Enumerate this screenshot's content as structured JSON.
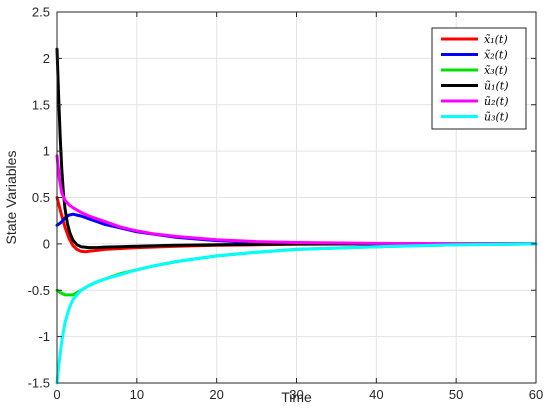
{
  "chart_data": {
    "type": "line",
    "title": "",
    "xlabel": "Time",
    "ylabel": "State Variables",
    "xlim": [
      0,
      60
    ],
    "ylim": [
      -1.5,
      2.5
    ],
    "grid": true,
    "legend_position": "top-right",
    "x_ticks": [
      0,
      10,
      20,
      30,
      40,
      50,
      60
    ],
    "x_tick_labels": [
      "0",
      "10",
      "20",
      "30",
      "40",
      "50",
      "60"
    ],
    "y_ticks": [
      -1.5,
      -1,
      -0.5,
      0,
      0.5,
      1,
      1.5,
      2,
      2.5
    ],
    "y_tick_labels": [
      "-1.5",
      "-1",
      "-0.5",
      "0",
      "0.5",
      "1",
      "1.5",
      "2",
      "2.5"
    ],
    "series": [
      {
        "name": "x̃₁(t)",
        "color": "#ff0000",
        "x": [
          0,
          0.3,
          0.6,
          1,
          1.5,
          2,
          2.5,
          3,
          3.5,
          4,
          5,
          6,
          8,
          10,
          15,
          20,
          25,
          30,
          40,
          50,
          60
        ],
        "y": [
          0.5,
          0.4,
          0.3,
          0.18,
          0.06,
          -0.02,
          -0.06,
          -0.08,
          -0.085,
          -0.08,
          -0.07,
          -0.06,
          -0.05,
          -0.04,
          -0.025,
          -0.015,
          -0.01,
          -0.005,
          0,
          0,
          0
        ]
      },
      {
        "name": "x̃₂(t)",
        "color": "#0000ff",
        "x": [
          0,
          0.5,
          1,
          1.5,
          2,
          2.5,
          3,
          4,
          5,
          6,
          8,
          10,
          15,
          20,
          25,
          30,
          40,
          50,
          60
        ],
        "y": [
          0.2,
          0.23,
          0.28,
          0.31,
          0.32,
          0.31,
          0.3,
          0.27,
          0.24,
          0.21,
          0.17,
          0.13,
          0.07,
          0.035,
          0.015,
          0.005,
          0,
          0,
          0
        ]
      },
      {
        "name": "x̃₃(t)",
        "color": "#00e000",
        "x": [
          0,
          0.5,
          1,
          2,
          3,
          4,
          5,
          6,
          8,
          10,
          12,
          15,
          20,
          25,
          30,
          40,
          50,
          60
        ],
        "y": [
          -0.5,
          -0.53,
          -0.55,
          -0.55,
          -0.5,
          -0.45,
          -0.41,
          -0.38,
          -0.32,
          -0.28,
          -0.24,
          -0.19,
          -0.13,
          -0.09,
          -0.06,
          -0.03,
          -0.01,
          0
        ]
      },
      {
        "name": "ũ₁(t)",
        "color": "#000000",
        "x": [
          0,
          0.2,
          0.4,
          0.6,
          0.8,
          1,
          1.3,
          1.6,
          2,
          2.5,
          3,
          4,
          5,
          6,
          8,
          10,
          15,
          20,
          30,
          40,
          50,
          60
        ],
        "y": [
          2.1,
          1.6,
          1.15,
          0.8,
          0.55,
          0.38,
          0.22,
          0.12,
          0.04,
          -0.01,
          -0.03,
          -0.04,
          -0.04,
          -0.035,
          -0.03,
          -0.025,
          -0.015,
          -0.01,
          0,
          0,
          0,
          0
        ]
      },
      {
        "name": "ũ₂(t)",
        "color": "#ff00ff",
        "x": [
          0,
          0.3,
          0.6,
          1,
          1.5,
          2,
          3,
          4,
          5,
          6,
          8,
          10,
          12,
          15,
          20,
          25,
          30,
          40,
          50,
          60
        ],
        "y": [
          0.95,
          0.7,
          0.55,
          0.47,
          0.42,
          0.39,
          0.34,
          0.3,
          0.27,
          0.24,
          0.18,
          0.14,
          0.11,
          0.08,
          0.045,
          0.025,
          0.015,
          0.005,
          0,
          0
        ]
      },
      {
        "name": "ũ₃(t)",
        "color": "#00ffff",
        "x": [
          0,
          0.3,
          0.6,
          1,
          1.5,
          2,
          3,
          4,
          5,
          6,
          8,
          10,
          12,
          15,
          20,
          25,
          30,
          40,
          50,
          60
        ],
        "y": [
          -1.5,
          -1.25,
          -1.05,
          -0.85,
          -0.7,
          -0.6,
          -0.5,
          -0.45,
          -0.41,
          -0.38,
          -0.33,
          -0.28,
          -0.24,
          -0.19,
          -0.13,
          -0.09,
          -0.06,
          -0.03,
          -0.01,
          0
        ]
      }
    ]
  }
}
